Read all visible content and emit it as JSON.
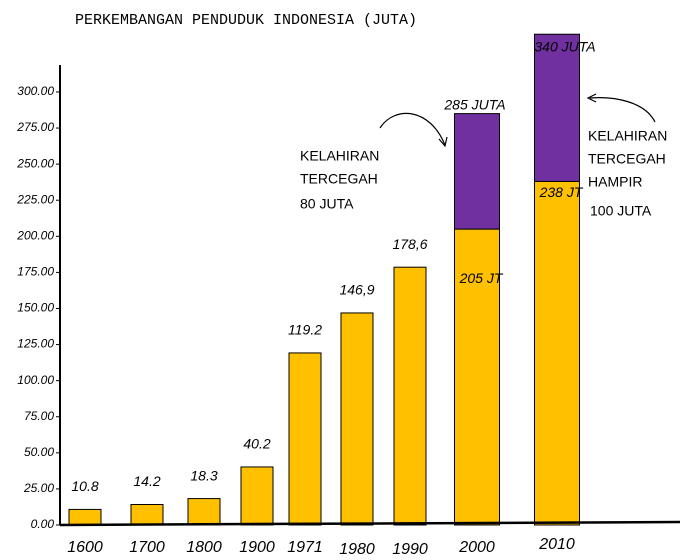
{
  "chart_data": {
    "type": "bar",
    "stacked": true,
    "title": "PERKEMBANGAN PENDUDUK INDONESIA (JUTA)",
    "categories": [
      "1600",
      "1700",
      "1800",
      "1900",
      "1971",
      "1980",
      "1990",
      "2000",
      "2010"
    ],
    "series": [
      {
        "color": "#ffc000",
        "values": [
          10.8,
          14.2,
          18.3,
          40.2,
          119.2,
          146.9,
          178.6,
          205,
          238
        ],
        "value_labels": [
          "10.8",
          "14.2",
          "18.3",
          "40.2",
          "119.2",
          "146,9",
          "178,6",
          "205 JT",
          "238 JT"
        ]
      },
      {
        "color": "#7030a0",
        "values": [
          null,
          null,
          null,
          null,
          null,
          null,
          null,
          80,
          102
        ]
      }
    ],
    "ylim": [
      0,
      345
    ],
    "yticks": [
      {
        "value": 0,
        "label": "0.00"
      },
      {
        "value": 25,
        "label": "25.00"
      },
      {
        "value": 50,
        "label": "50.00"
      },
      {
        "value": 75,
        "label": "75.00"
      },
      {
        "value": 100,
        "label": "100.00"
      },
      {
        "value": 125,
        "label": "125.00"
      },
      {
        "value": 150,
        "label": "150.00"
      },
      {
        "value": 175,
        "label": "175.00"
      },
      {
        "value": 200,
        "label": "200.00"
      },
      {
        "value": 225,
        "label": "225.00"
      },
      {
        "value": 250,
        "label": "250.00"
      },
      {
        "value": 275,
        "label": "275.00"
      },
      {
        "value": 300,
        "label": "300.00"
      }
    ],
    "annotations": [
      "285 JUTA",
      "340 JUTA",
      "KELAHIRAN",
      "TERCEGAH",
      "80 JUTA",
      "KELAHIRAN",
      "TERCEGAH",
      "HAMPIR",
      "100 JUTA"
    ]
  }
}
